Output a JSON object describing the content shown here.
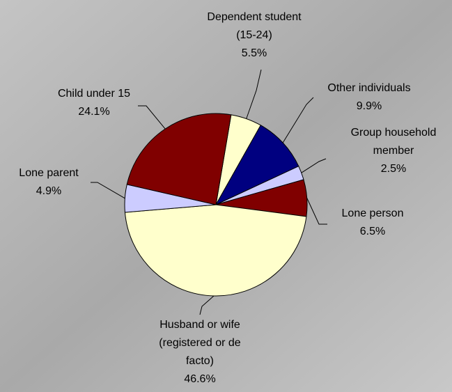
{
  "chart_data": {
    "type": "pie",
    "categories": [
      "Dependent student (15-24)",
      "Other individuals",
      "Group household member",
      "Lone person",
      "Husband or wife (registered or de facto)",
      "Lone parent",
      "Child under 15"
    ],
    "values": [
      5.5,
      9.9,
      2.5,
      6.5,
      46.6,
      4.9,
      24.1
    ],
    "value_labels": [
      "5.5%",
      "9.9%",
      "2.5%",
      "6.5%",
      "46.6%",
      "4.9%",
      "24.1%"
    ],
    "colors": [
      "#ffffcc",
      "#000080",
      "#ccccff",
      "#800000",
      "#ffffcc",
      "#ccccff",
      "#800000"
    ]
  }
}
